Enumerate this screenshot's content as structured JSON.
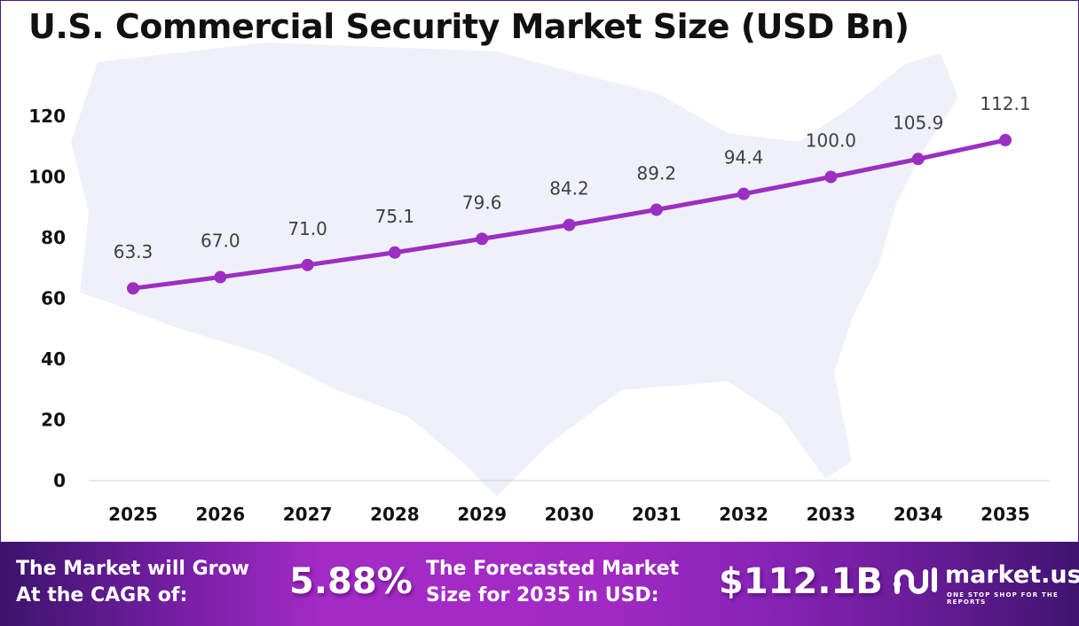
{
  "chart_data": {
    "type": "line",
    "title": "U.S. Commercial Security Market Size (USD Bn)",
    "categories": [
      "2025",
      "2026",
      "2027",
      "2028",
      "2029",
      "2030",
      "2031",
      "2032",
      "2033",
      "2034",
      "2035"
    ],
    "values": [
      63.3,
      67.0,
      71.0,
      75.1,
      79.6,
      84.2,
      89.2,
      94.4,
      100.0,
      105.9,
      112.1
    ],
    "data_labels": [
      "63.3",
      "67.0",
      "71.0",
      "75.1",
      "79.6",
      "84.2",
      "89.2",
      "94.4",
      "100.0",
      "105.9",
      "112.1"
    ],
    "ylim": [
      0,
      120
    ],
    "yticks": [
      "0",
      "20",
      "40",
      "60",
      "80",
      "100",
      "120"
    ],
    "grid": false,
    "line_color": "#9c2fc2"
  },
  "footer": {
    "cagr_label": [
      "The Market will Grow",
      "At the CAGR of:"
    ],
    "cagr_value": "5.88%",
    "forecast_label": [
      "The Forecasted Market",
      "Size for 2035 in USD:"
    ],
    "forecast_value": "$112.1B",
    "logo": {
      "name": "market.us",
      "tagline": "ONE STOP SHOP FOR THE REPORTS"
    }
  }
}
